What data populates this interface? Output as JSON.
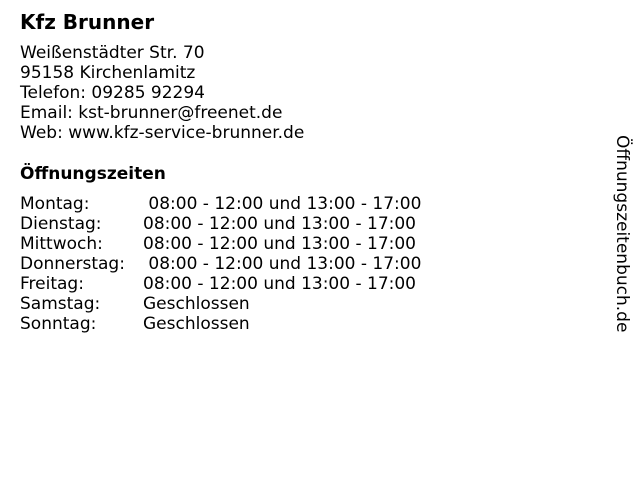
{
  "business": {
    "name": "Kfz Brunner",
    "address_lines": [
      "Weißenstädter Str. 70",
      "95158 Kirchenlamitz",
      "Telefon: 09285 92294",
      "Email: kst-brunner@freenet.de",
      "Web: www.kfz-service-brunner.de"
    ]
  },
  "hours": {
    "heading": "Öffnungszeiten",
    "rows": [
      {
        "day": "Montag:",
        "time": " 08:00 - 12:00 und 13:00 - 17:00"
      },
      {
        "day": "Dienstag:",
        "time": "08:00 - 12:00 und 13:00 - 17:00"
      },
      {
        "day": "Mittwoch:",
        "time": "08:00 - 12:00 und 13:00 - 17:00"
      },
      {
        "day": "Donnerstag:",
        "time": " 08:00 - 12:00 und 13:00 - 17:00"
      },
      {
        "day": "Freitag:",
        "time": "08:00 - 12:00 und 13:00 - 17:00"
      },
      {
        "day": "Samstag:",
        "time": "Geschlossen"
      },
      {
        "day": "Sonntag:",
        "time": "Geschlossen"
      }
    ]
  },
  "watermark": "Öffnungszeitenbuch.de"
}
